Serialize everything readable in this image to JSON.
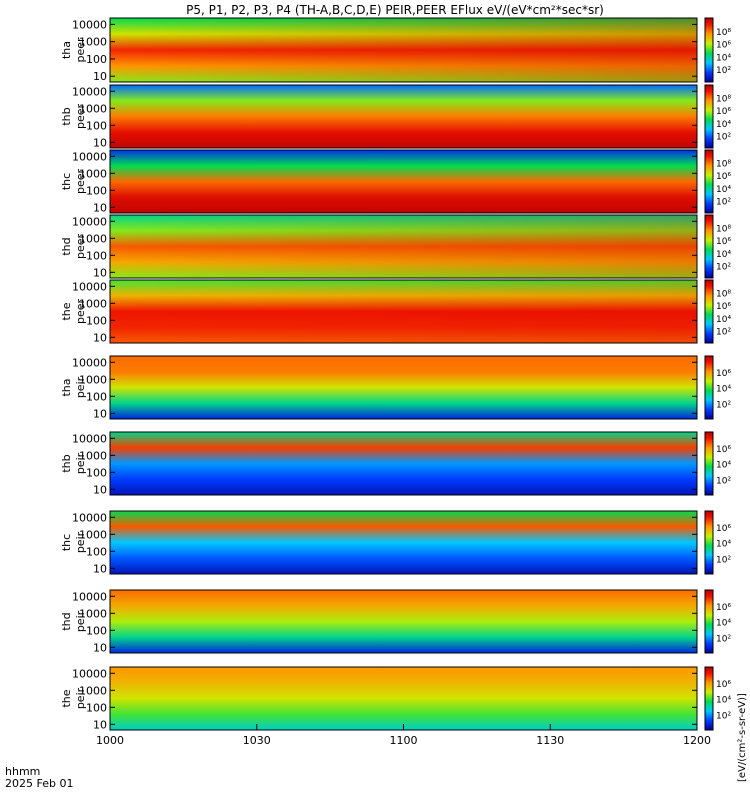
{
  "chart_data": {
    "type": "heatmap",
    "title": "P5, P1, P2, P3, P4 (TH-A,B,C,D,E) PEIR,PEER EFlux eV/(eV*cm²*sec*sr)",
    "x_ticks": [
      "1000",
      "1030",
      "1100",
      "1130",
      "1200"
    ],
    "x_label_lines": [
      "hhmm",
      "2025 Feb 01"
    ],
    "y_scale": "log",
    "y_ticks": [
      "10",
      "100",
      "1000",
      "10000"
    ],
    "colorbar_scale": "log",
    "colorbar_ticks_electron": [
      "10²",
      "10⁴",
      "10⁶",
      "10⁸"
    ],
    "colorbar_ticks_ion": [
      "10²",
      "10⁴",
      "10⁶"
    ],
    "colorbar_label": "[eV/(cm²-s-sr-eV)]",
    "panels": [
      {
        "probe": "tha",
        "species": "peer",
        "profile": [
          0.55,
          0.75,
          0.88,
          0.62,
          0.45
        ],
        "trend": 0.35
      },
      {
        "probe": "thb",
        "species": "peer",
        "profile": [
          0.98,
          0.92,
          0.78,
          0.55,
          0.2
        ],
        "trend": 0.0
      },
      {
        "probe": "thc",
        "species": "peer",
        "profile": [
          0.98,
          0.93,
          0.8,
          0.45,
          0.12
        ],
        "trend": 0.0
      },
      {
        "probe": "thd",
        "species": "peer",
        "profile": [
          0.55,
          0.72,
          0.82,
          0.55,
          0.4
        ],
        "trend": 0.25
      },
      {
        "probe": "the",
        "species": "peer",
        "profile": [
          0.82,
          0.88,
          0.9,
          0.7,
          0.5
        ],
        "trend": 0.15
      },
      {
        "probe": "tha",
        "species": "peir",
        "profile": [
          0.1,
          0.4,
          0.62,
          0.78,
          0.8
        ],
        "trend": 0.0
      },
      {
        "probe": "thb",
        "species": "peir",
        "profile": [
          0.05,
          0.15,
          0.25,
          0.85,
          0.4
        ],
        "trend": 0.0
      },
      {
        "probe": "thc",
        "species": "peir",
        "profile": [
          0.05,
          0.18,
          0.3,
          0.82,
          0.45
        ],
        "trend": 0.0
      },
      {
        "probe": "thd",
        "species": "peir",
        "profile": [
          0.1,
          0.4,
          0.58,
          0.72,
          0.8
        ],
        "trend": 0.0
      },
      {
        "probe": "the",
        "species": "peir",
        "profile": [
          0.35,
          0.5,
          0.62,
          0.7,
          0.75
        ],
        "trend": 0.0
      }
    ]
  }
}
